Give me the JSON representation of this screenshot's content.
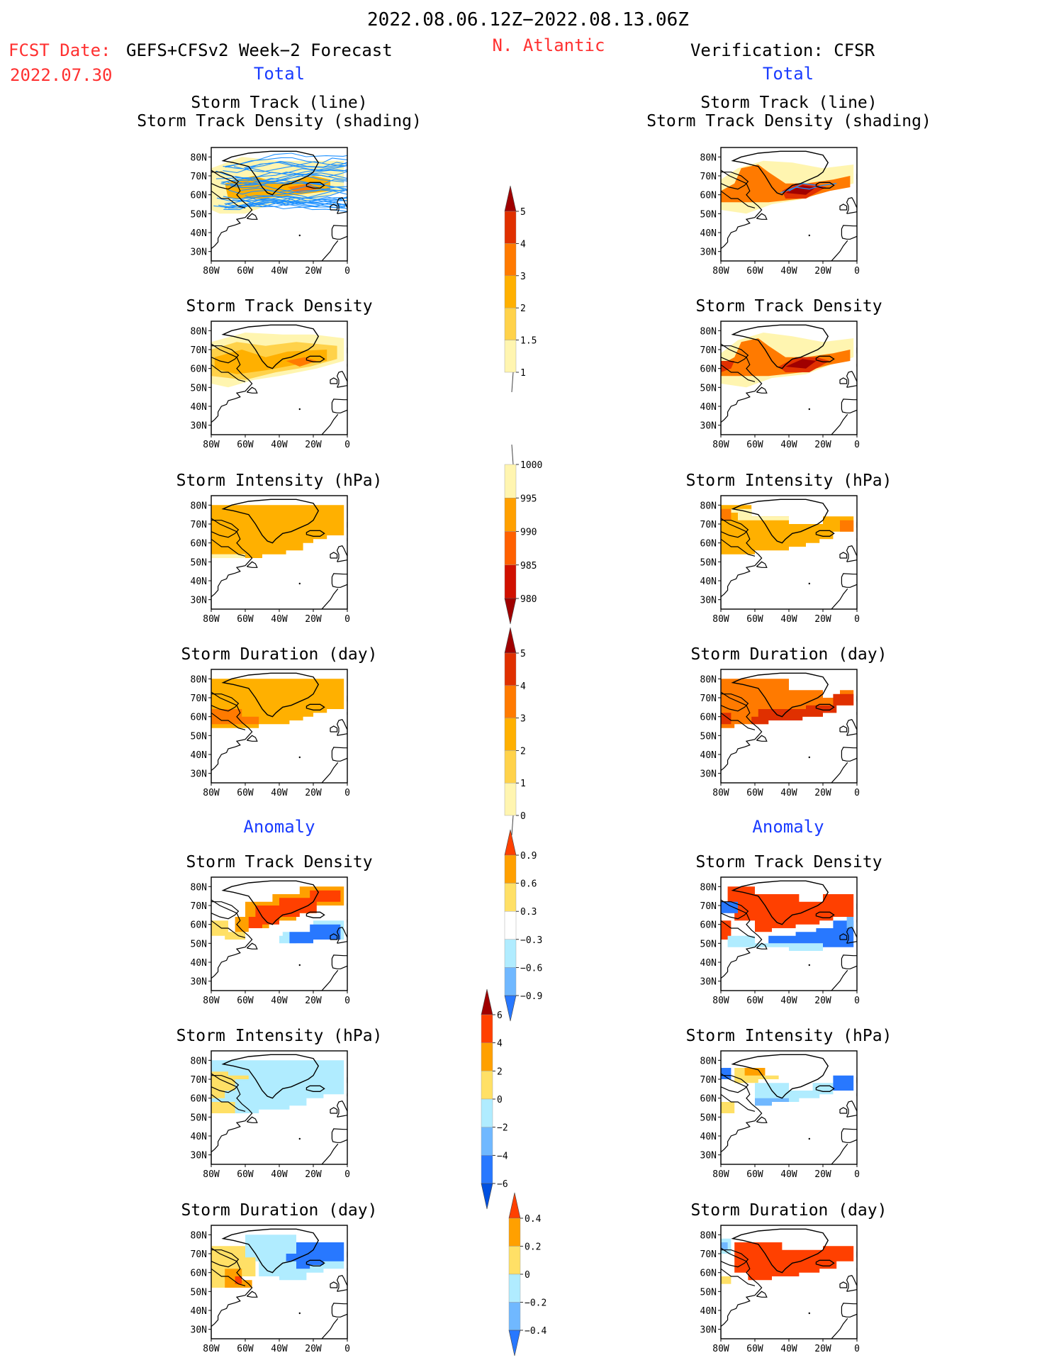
{
  "header": {
    "period": "2022.08.06.12Z−2022.08.13.06Z",
    "fcst_date_label": "FCST Date:",
    "model": "GEFS+CFSv2 Week−2 Forecast",
    "fcst_date": "2022.07.30",
    "region": "N. Atlantic",
    "verification": "Verification: CFSR"
  },
  "sections": {
    "total": "Total",
    "anomaly": "Anomaly"
  },
  "colors": {
    "text": "#000000",
    "red_label": "#ff3030",
    "blue_label": "#1a3cff",
    "map_line": "#000000",
    "track_line": "#1e90ff"
  },
  "axes": {
    "lat_ticks": [
      "80N",
      "70N",
      "60N",
      "50N",
      "40N",
      "30N"
    ],
    "lon_ticks": [
      "80W",
      "60W",
      "40W",
      "20W",
      "0"
    ]
  },
  "panels": [
    {
      "id": "fcst-track",
      "col": "left",
      "row": 0,
      "title1": "Storm Track (line)",
      "title2": "Storm Track Density (shading)",
      "field": "track_total"
    },
    {
      "id": "fcst-density",
      "col": "left",
      "row": 1,
      "title1": "Storm Track Density",
      "field": "density_total"
    },
    {
      "id": "fcst-intensity",
      "col": "left",
      "row": 2,
      "title1": "Storm Intensity (hPa)",
      "field": "intensity_total"
    },
    {
      "id": "fcst-duration",
      "col": "left",
      "row": 3,
      "title1": "Storm Duration (day)",
      "field": "duration_total"
    },
    {
      "id": "fcst-density-anom",
      "col": "left",
      "row": 4,
      "title1": "Storm Track Density",
      "field": "density_anom"
    },
    {
      "id": "fcst-intensity-anom",
      "col": "left",
      "row": 5,
      "title1": "Storm Intensity (hPa)",
      "field": "intensity_anom"
    },
    {
      "id": "fcst-duration-anom",
      "col": "left",
      "row": 6,
      "title1": "Storm Duration (day)",
      "field": "duration_anom"
    },
    {
      "id": "verif-track",
      "col": "right",
      "row": 0,
      "title1": "Storm Track (line)",
      "title2": "Storm Track Density (shading)",
      "field": "track_total"
    },
    {
      "id": "verif-density",
      "col": "right",
      "row": 1,
      "title1": "Storm Track Density",
      "field": "density_total"
    },
    {
      "id": "verif-intensity",
      "col": "right",
      "row": 2,
      "title1": "Storm Intensity (hPa)",
      "field": "intensity_total"
    },
    {
      "id": "verif-duration",
      "col": "right",
      "row": 3,
      "title1": "Storm Duration (day)",
      "field": "duration_total"
    },
    {
      "id": "verif-density-anom",
      "col": "right",
      "row": 4,
      "title1": "Storm Track Density",
      "field": "density_anom"
    },
    {
      "id": "verif-intensity-anom",
      "col": "right",
      "row": 5,
      "title1": "Storm Intensity (hPa)",
      "field": "intensity_anom"
    },
    {
      "id": "verif-duration-anom",
      "col": "right",
      "row": 6,
      "title1": "Storm Duration (day)",
      "field": "duration_anom"
    }
  ],
  "colorbars": [
    {
      "id": "cb-density-total",
      "labels": [
        "5",
        "4",
        "3",
        "2",
        "1.5",
        "1"
      ],
      "colors": [
        "#a00000",
        "#e03000",
        "#ff7a00",
        "#ffb000",
        "#ffd24a",
        "#fff5b0"
      ],
      "top_tip": "triangle",
      "bottom_tip": "open"
    },
    {
      "id": "cb-intensity-total",
      "labels": [
        "1000",
        "995",
        "990",
        "985",
        "980"
      ],
      "colors": [
        "#fff5b0",
        "#ffa000",
        "#ff6000",
        "#d01000",
        "#a00000"
      ],
      "top_tip": "open",
      "bottom_tip": "triangle"
    },
    {
      "id": "cb-duration-total",
      "labels": [
        "5",
        "4",
        "3",
        "2",
        "1",
        "0"
      ],
      "colors": [
        "#a00000",
        "#e03000",
        "#ff7a00",
        "#ffb000",
        "#ffd24a",
        "#fff5b0"
      ],
      "top_tip": "triangle",
      "bottom_tip": "open"
    },
    {
      "id": "cb-density-anom",
      "labels": [
        "0.9",
        "0.6",
        "0.3",
        "−0.3",
        "−0.6",
        "−0.9"
      ],
      "colors": [
        "#ff4000",
        "#ffa000",
        "#ffe066",
        "#ffffff",
        "#b0ecff",
        "#70b8ff",
        "#2878ff"
      ],
      "top_tip": "triangle",
      "bottom_tip": "triangle"
    },
    {
      "id": "cb-intensity-anom",
      "labels": [
        "6",
        "4",
        "2",
        "0",
        "−2",
        "−4",
        "−6"
      ],
      "colors": [
        "#a00000",
        "#ff4000",
        "#ffa000",
        "#ffe066",
        "#b0ecff",
        "#70b8ff",
        "#2878ff",
        "#0050e0"
      ],
      "top_tip": "triangle",
      "bottom_tip": "triangle"
    },
    {
      "id": "cb-duration-anom",
      "labels": [
        "0.4",
        "0.2",
        "0",
        "−0.2",
        "−0.4"
      ],
      "colors": [
        "#ff4000",
        "#ffa000",
        "#ffe066",
        "#b0ecff",
        "#70b8ff",
        "#2878ff"
      ],
      "top_tip": "triangle",
      "bottom_tip": "triangle"
    }
  ]
}
